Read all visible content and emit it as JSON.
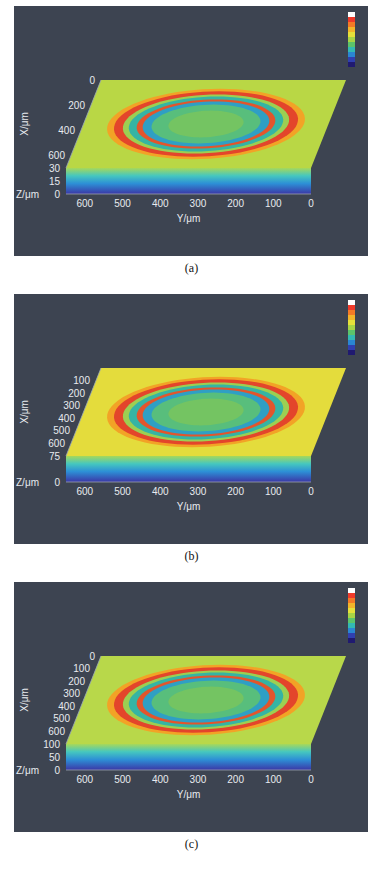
{
  "chart_data": [
    {
      "type": "surface",
      "title": "(a)",
      "xlabel": "X/μm",
      "ylabel": "Y/μm",
      "zlabel": "Z/μm",
      "xlim": [
        0,
        700
      ],
      "xticks": [
        0,
        200,
        400,
        600
      ],
      "ylim": [
        0,
        650
      ],
      "yticks": [
        0,
        100,
        200,
        300,
        400,
        500,
        600
      ],
      "zlim": [
        0,
        30
      ],
      "zticks": [
        0,
        15,
        30
      ]
    },
    {
      "type": "surface",
      "title": "(b)",
      "xlabel": "X/μm",
      "ylabel": "Y/μm",
      "zlabel": "Z/μm",
      "xlim": [
        0,
        700
      ],
      "xticks": [
        100,
        200,
        300,
        400,
        500,
        600
      ],
      "ylim": [
        0,
        650
      ],
      "yticks": [
        0,
        100,
        200,
        300,
        400,
        500,
        600
      ],
      "zlim": [
        0,
        75
      ],
      "zticks": [
        0,
        75
      ]
    },
    {
      "type": "surface",
      "title": "(c)",
      "xlabel": "X/μm",
      "ylabel": "Y/μm",
      "zlabel": "Z/μm",
      "xlim": [
        0,
        700
      ],
      "xticks": [
        0,
        100,
        200,
        300,
        400,
        500,
        600
      ],
      "ylim": [
        0,
        650
      ],
      "yticks": [
        0,
        100,
        200,
        300,
        400,
        500,
        600
      ],
      "zlim": [
        0,
        100
      ],
      "zticks": [
        0,
        50,
        100
      ]
    }
  ]
}
